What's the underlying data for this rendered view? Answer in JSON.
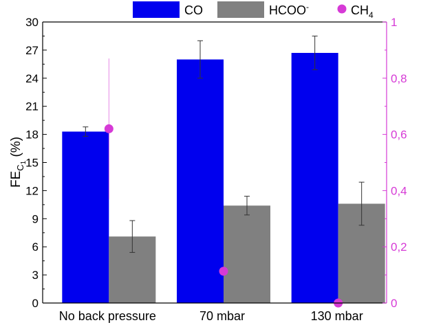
{
  "chart_data": {
    "type": "bar",
    "categories": [
      "No back pressure",
      "70 mbar",
      "130 mbar"
    ],
    "ylabel": {
      "main": "FE",
      "sub": "C",
      "subsub": "1",
      "unit": " (%)"
    },
    "ylim": [
      0,
      30
    ],
    "yticks": [
      "0",
      "3",
      "6",
      "9",
      "12",
      "15",
      "18",
      "21",
      "24",
      "27",
      "30"
    ],
    "y2lim": [
      0,
      1
    ],
    "y2ticks": [
      "0",
      "0,2",
      "0,4",
      "0,6",
      "0,8",
      "1"
    ],
    "series": [
      {
        "name": "CO",
        "kind": "bar",
        "axis": "left",
        "color": "#0000ee",
        "values": [
          18.3,
          26.0,
          26.7
        ],
        "errors": [
          0.5,
          2.0,
          1.8
        ]
      },
      {
        "name": "HCOO",
        "name_sup": "-",
        "kind": "bar",
        "axis": "left",
        "color": "#808080",
        "values": [
          7.1,
          10.4,
          10.6
        ],
        "errors": [
          1.7,
          1.0,
          2.3
        ]
      },
      {
        "name": "CH",
        "name_sub": "4",
        "kind": "scatter",
        "axis": "right",
        "color": "#d63ad6",
        "values": [
          0.62,
          0.113,
          0.0
        ],
        "errors": [
          0.25,
          0.0,
          0.0
        ]
      }
    ],
    "legend_position": "top",
    "grid": false
  }
}
